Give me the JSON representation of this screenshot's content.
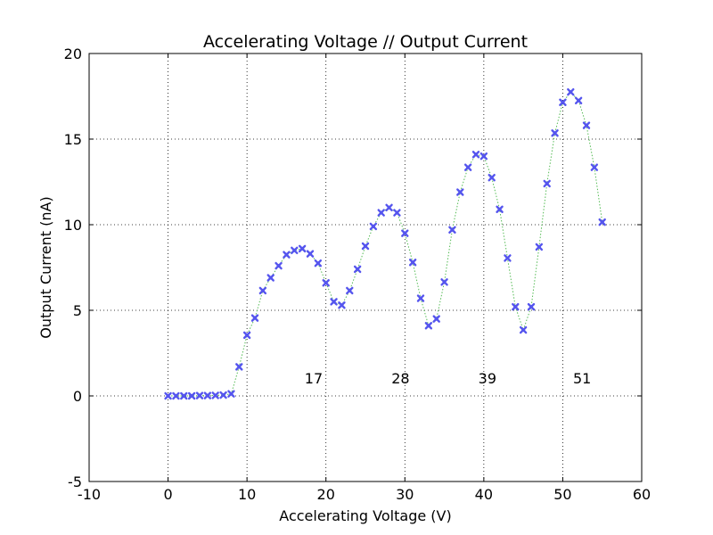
{
  "chart_data": {
    "type": "scatter",
    "title": "Accelerating Voltage // Output Current",
    "xlabel": "Accelerating Voltage (V)",
    "ylabel": "Output Current (nA)",
    "xlim": [
      -10,
      60
    ],
    "ylim": [
      -5,
      20
    ],
    "xticks": [
      -10,
      0,
      10,
      20,
      30,
      40,
      50,
      60
    ],
    "yticks": [
      -5,
      0,
      5,
      10,
      15,
      20
    ],
    "grid": true,
    "grid_style": "dotted",
    "marker_color": "#5555ee",
    "line_color": "#55bb55",
    "line_style": "dotted",
    "series": [
      {
        "x": [
          0,
          1,
          2,
          3,
          4,
          5,
          6,
          7,
          8,
          9,
          10,
          11,
          12,
          13,
          14,
          15,
          16,
          17,
          18,
          19,
          20,
          21,
          22,
          23,
          24,
          25,
          26,
          27,
          28,
          29,
          30,
          31,
          32,
          33,
          34,
          35,
          36,
          37,
          38,
          39,
          40,
          41,
          42,
          43,
          44,
          45,
          46,
          47,
          48,
          49,
          50,
          51,
          52,
          53,
          54,
          55
        ],
        "y": [
          0.0,
          0.0,
          0.0,
          0.0,
          0.02,
          0.02,
          0.03,
          0.05,
          0.12,
          1.7,
          3.55,
          4.55,
          6.15,
          6.9,
          7.6,
          8.25,
          8.5,
          8.6,
          8.3,
          7.75,
          6.6,
          5.5,
          5.3,
          6.15,
          7.4,
          8.75,
          9.9,
          10.7,
          11.0,
          10.7,
          9.5,
          7.8,
          5.7,
          4.1,
          4.5,
          6.65,
          9.7,
          11.9,
          13.35,
          14.1,
          14.0,
          12.75,
          10.9,
          8.05,
          5.2,
          3.85,
          5.2,
          8.7,
          12.4,
          15.35,
          17.15,
          17.75,
          17.25,
          15.8,
          13.35,
          10.15
        ]
      }
    ],
    "annotations": [
      {
        "text": "17",
        "x": 17.3,
        "y": 1.0
      },
      {
        "text": "28",
        "x": 28.3,
        "y": 1.0
      },
      {
        "text": "39",
        "x": 39.3,
        "y": 1.0
      },
      {
        "text": "51",
        "x": 51.3,
        "y": 1.0
      }
    ]
  }
}
